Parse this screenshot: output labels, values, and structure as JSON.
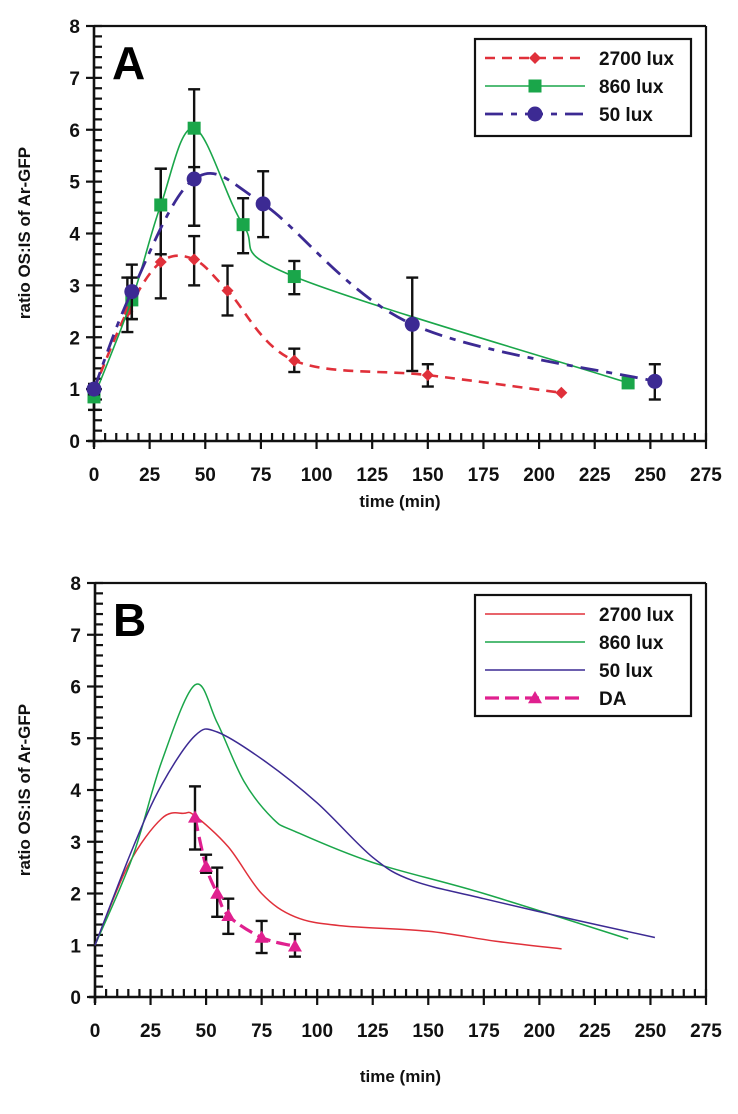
{
  "chart_data": [
    {
      "type": "line",
      "panel_label": "A",
      "title": "",
      "xlabel": "time (min)",
      "ylabel": "ratio OS:IS of Ar-GFP",
      "xlim": [
        0,
        275
      ],
      "ylim": [
        0,
        8
      ],
      "x_ticks": [
        0,
        25,
        50,
        75,
        100,
        125,
        150,
        175,
        200,
        225,
        250,
        275
      ],
      "y_ticks": [
        0,
        1,
        2,
        3,
        4,
        5,
        6,
        7,
        8
      ],
      "grid": false,
      "legend_position": "top-right",
      "series": [
        {
          "name": "2700 lux",
          "color": "#e0303a",
          "marker": "diamond",
          "line_style": "dashed",
          "x": [
            0,
            15,
            30,
            45,
            60,
            90,
            150,
            210
          ],
          "y": [
            1.0,
            2.5,
            3.45,
            3.5,
            2.9,
            1.55,
            1.27,
            0.93
          ],
          "error_low": [
            0.9,
            2.1,
            2.75,
            3.0,
            2.42,
            1.33,
            1.05,
            null
          ],
          "error_high": [
            1.1,
            3.15,
            5.25,
            3.95,
            3.38,
            1.78,
            1.48,
            null
          ]
        },
        {
          "name": "860 lux",
          "color": "#1aa64a",
          "marker": "square",
          "line_style": "solid",
          "x": [
            0,
            17,
            30,
            45,
            67,
            90,
            240
          ],
          "y": [
            0.85,
            2.72,
            4.55,
            6.03,
            4.17,
            3.17,
            1.12
          ],
          "error_low": [
            0.6,
            2.35,
            3.6,
            4.15,
            3.62,
            2.83,
            null
          ],
          "error_high": [
            1.05,
            3.15,
            5.25,
            6.78,
            4.68,
            3.47,
            null
          ]
        },
        {
          "name": "50 lux",
          "color": "#3c2a93",
          "marker": "circle",
          "line_style": "dash-dot",
          "x": [
            0,
            17,
            45,
            76,
            143,
            252
          ],
          "y": [
            1.0,
            2.88,
            5.05,
            4.57,
            2.25,
            1.15
          ],
          "error_low": [
            0.9,
            2.35,
            4.15,
            3.93,
            1.35,
            0.8
          ],
          "error_high": [
            1.05,
            3.4,
            5.28,
            5.2,
            3.15,
            1.48
          ]
        }
      ]
    },
    {
      "type": "line",
      "panel_label": "B",
      "title": "",
      "xlabel": "time (min)",
      "ylabel": "ratio OS:IS of Ar-GFP",
      "xlim": [
        0,
        275
      ],
      "ylim": [
        0,
        8
      ],
      "x_ticks": [
        0,
        25,
        50,
        75,
        100,
        125,
        150,
        175,
        200,
        225,
        250,
        275
      ],
      "y_ticks": [
        0,
        1,
        2,
        3,
        4,
        5,
        6,
        7,
        8
      ],
      "grid": false,
      "legend_position": "top-right",
      "series": [
        {
          "name": "2700 lux",
          "color": "#e0303a",
          "marker": "none",
          "line_style": "solid-thin",
          "x": [
            0,
            15,
            30,
            40,
            45,
            60,
            75,
            90,
            110,
            150,
            180,
            210
          ],
          "y": [
            1.0,
            2.55,
            3.45,
            3.55,
            3.5,
            2.9,
            2.0,
            1.55,
            1.38,
            1.27,
            1.08,
            0.93
          ]
        },
        {
          "name": "860 lux",
          "color": "#1aa64a",
          "marker": "none",
          "line_style": "solid-thin",
          "x": [
            0,
            17,
            30,
            45,
            55,
            67,
            80,
            90,
            125,
            175,
            240
          ],
          "y": [
            0.85,
            2.72,
            4.55,
            6.03,
            5.3,
            4.17,
            3.45,
            3.2,
            2.6,
            2.0,
            1.12
          ],
          "display_start": 1.0
        },
        {
          "name": "50 lux",
          "color": "#3c2a93",
          "marker": "none",
          "line_style": "solid-thin",
          "x": [
            0,
            17,
            30,
            45,
            55,
            76,
            100,
            125,
            143,
            175,
            215,
            252
          ],
          "y": [
            1.0,
            2.88,
            4.1,
            5.05,
            5.12,
            4.57,
            3.75,
            2.7,
            2.25,
            1.9,
            1.5,
            1.15
          ]
        },
        {
          "name": "DA",
          "color": "#e0208f",
          "marker": "triangle",
          "line_style": "dashed-thick",
          "x": [
            45,
            50,
            55,
            60,
            75,
            90
          ],
          "y": [
            3.47,
            2.52,
            2.0,
            1.57,
            1.15,
            0.98
          ],
          "error_low": [
            2.85,
            2.4,
            1.55,
            1.22,
            0.85,
            0.78
          ],
          "error_high": [
            4.07,
            2.75,
            2.5,
            1.9,
            1.47,
            1.22
          ]
        }
      ]
    }
  ]
}
